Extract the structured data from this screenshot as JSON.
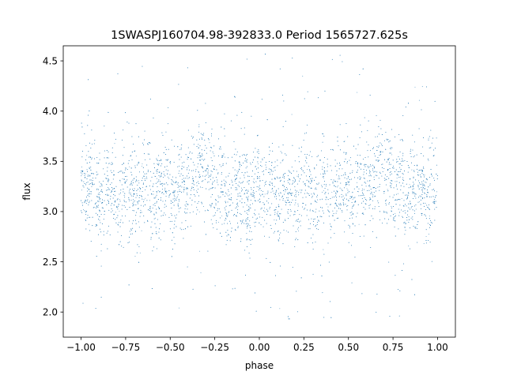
{
  "chart_data": {
    "type": "scatter",
    "title": "1SWASPJ160704.98-392833.0 Period 1565727.625s",
    "xlabel": "phase",
    "ylabel": "flux",
    "xlim": [
      -1.1,
      1.1
    ],
    "ylim": [
      1.75,
      4.65
    ],
    "x_ticks": [
      -1.0,
      -0.75,
      -0.5,
      -0.25,
      0.0,
      0.25,
      0.5,
      0.75,
      1.0
    ],
    "x_tick_labels": [
      "−1.00",
      "−0.75",
      "−0.50",
      "−0.25",
      "0.00",
      "0.25",
      "0.50",
      "0.75",
      "1.00"
    ],
    "y_ticks": [
      2.0,
      2.5,
      3.0,
      3.5,
      4.0,
      4.5
    ],
    "y_tick_labels": [
      "2.0",
      "2.5",
      "3.0",
      "3.5",
      "4.0",
      "4.5"
    ],
    "grid": false,
    "marker_color": "#1f77b4",
    "series": [
      {
        "x_range": [
          -1.0,
          1.0
        ],
        "y_typical_range": [
          2.6,
          3.9
        ],
        "y_full_range": [
          1.9,
          4.6
        ],
        "median_y": 3.2,
        "approx_point_count": 6000
      }
    ]
  }
}
